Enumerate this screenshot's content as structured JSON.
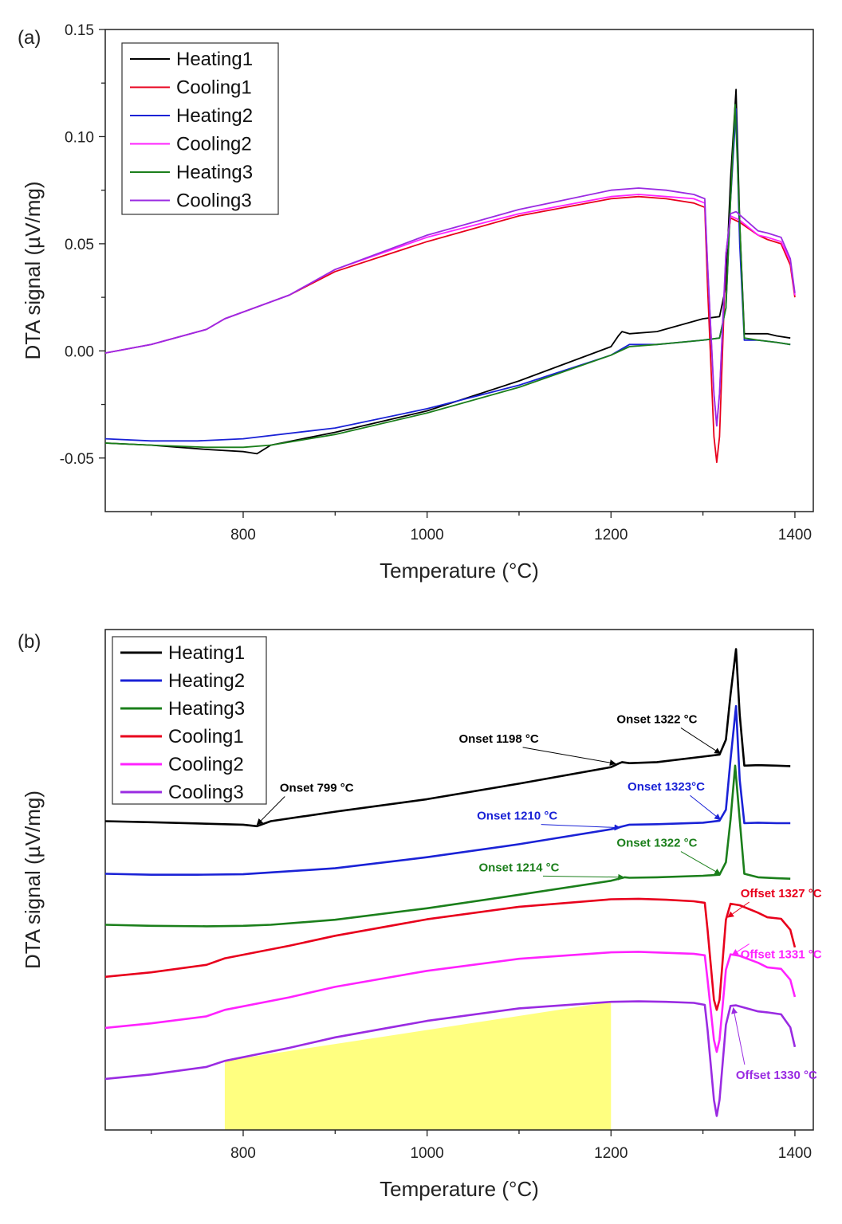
{
  "chart_data": [
    {
      "type": "line",
      "panel_label": "(a)",
      "xlabel": "Temperature (°C)",
      "ylabel": "DTA signal (µV/mg)",
      "xlim": [
        650,
        1420
      ],
      "ylim": [
        -0.075,
        0.15
      ],
      "xticks": [
        800,
        1000,
        1200,
        1400
      ],
      "xtick_labels": [
        "800",
        "1000",
        "1200",
        "1400"
      ],
      "yticks": [
        -0.05,
        0.0,
        0.05,
        0.1,
        0.15
      ],
      "ytick_labels": [
        "-0.05",
        "0.00",
        "0.05",
        "0.10",
        "0.15"
      ],
      "legend_position": "top-left",
      "series": [
        {
          "name": "Heating1",
          "color": "#000000",
          "x": [
            650,
            700,
            760,
            800,
            815,
            830,
            900,
            1000,
            1100,
            1200,
            1208,
            1212,
            1220,
            1250,
            1300,
            1318,
            1325,
            1330,
            1336,
            1340,
            1345,
            1360,
            1370,
            1380,
            1395
          ],
          "y": [
            -0.043,
            -0.044,
            -0.046,
            -0.047,
            -0.048,
            -0.044,
            -0.038,
            -0.028,
            -0.014,
            0.002,
            0.007,
            0.009,
            0.008,
            0.009,
            0.015,
            0.016,
            0.03,
            0.08,
            0.122,
            0.06,
            0.008,
            0.008,
            0.008,
            0.007,
            0.006
          ]
        },
        {
          "name": "Cooling1",
          "color": "#e8001c",
          "x": [
            650,
            700,
            760,
            780,
            850,
            900,
            1000,
            1100,
            1200,
            1230,
            1260,
            1290,
            1302,
            1305,
            1312,
            1315,
            1318,
            1325,
            1330,
            1340,
            1360,
            1370,
            1385,
            1395,
            1400
          ],
          "y": [
            -0.001,
            0.003,
            0.01,
            0.015,
            0.026,
            0.037,
            0.051,
            0.063,
            0.071,
            0.072,
            0.071,
            0.069,
            0.067,
            0.03,
            -0.04,
            -0.052,
            -0.04,
            0.045,
            0.062,
            0.06,
            0.054,
            0.052,
            0.05,
            0.04,
            0.025
          ]
        },
        {
          "name": "Heating2",
          "color": "#1a22d6",
          "x": [
            650,
            700,
            750,
            800,
            900,
            1000,
            1100,
            1200,
            1220,
            1250,
            1300,
            1318,
            1325,
            1330,
            1336,
            1340,
            1345,
            1360,
            1380,
            1395
          ],
          "y": [
            -0.041,
            -0.042,
            -0.042,
            -0.041,
            -0.036,
            -0.027,
            -0.016,
            -0.002,
            0.003,
            0.003,
            0.005,
            0.006,
            0.02,
            0.07,
            0.113,
            0.05,
            0.005,
            0.005,
            0.004,
            0.003
          ]
        },
        {
          "name": "Cooling2",
          "color": "#ff22ff",
          "x": [
            650,
            700,
            760,
            780,
            850,
            900,
            1000,
            1100,
            1200,
            1230,
            1260,
            1290,
            1302,
            1305,
            1312,
            1315,
            1318,
            1325,
            1330,
            1340,
            1360,
            1370,
            1385,
            1395,
            1400
          ],
          "y": [
            -0.001,
            0.003,
            0.01,
            0.015,
            0.026,
            0.038,
            0.053,
            0.064,
            0.072,
            0.073,
            0.072,
            0.071,
            0.069,
            0.04,
            -0.02,
            -0.035,
            -0.02,
            0.045,
            0.063,
            0.061,
            0.054,
            0.053,
            0.051,
            0.042,
            0.026
          ]
        },
        {
          "name": "Heating3",
          "color": "#1b7f1b",
          "x": [
            650,
            700,
            760,
            800,
            830,
            900,
            1000,
            1100,
            1200,
            1220,
            1250,
            1300,
            1318,
            1325,
            1330,
            1335,
            1340,
            1345,
            1360,
            1380,
            1395
          ],
          "y": [
            -0.043,
            -0.044,
            -0.045,
            -0.045,
            -0.044,
            -0.039,
            -0.029,
            -0.017,
            -0.002,
            0.002,
            0.003,
            0.005,
            0.006,
            0.02,
            0.07,
            0.115,
            0.06,
            0.006,
            0.005,
            0.004,
            0.003
          ]
        },
        {
          "name": "Cooling3",
          "color": "#9a2be2",
          "x": [
            650,
            700,
            760,
            780,
            850,
            900,
            1000,
            1100,
            1200,
            1230,
            1260,
            1290,
            1302,
            1305,
            1312,
            1315,
            1318,
            1325,
            1330,
            1336,
            1360,
            1370,
            1385,
            1395,
            1400
          ],
          "y": [
            -0.001,
            0.003,
            0.01,
            0.015,
            0.026,
            0.038,
            0.054,
            0.066,
            0.075,
            0.076,
            0.075,
            0.073,
            0.071,
            0.04,
            -0.02,
            -0.035,
            -0.02,
            0.045,
            0.064,
            0.065,
            0.056,
            0.055,
            0.053,
            0.043,
            0.027
          ]
        }
      ]
    },
    {
      "type": "line",
      "panel_label": "(b)",
      "xlabel": "Temperature (°C)",
      "ylabel": "DTA signal (µV/mg)",
      "xlim": [
        650,
        1420
      ],
      "ylim": [
        0,
        100
      ],
      "xticks": [
        800,
        1000,
        1200,
        1400
      ],
      "xtick_labels": [
        "800",
        "1000",
        "1200",
        "1400"
      ],
      "yticks": [],
      "legend_position": "top-left",
      "highlight": {
        "x_start": 780,
        "x_end": 1200,
        "color": "#ffff80"
      },
      "series": [
        {
          "name": "Heating1",
          "color": "#000000",
          "x": [
            650,
            700,
            760,
            800,
            815,
            830,
            900,
            1000,
            1100,
            1200,
            1208,
            1212,
            1220,
            1250,
            1300,
            1318,
            1325,
            1330,
            1336,
            1340,
            1345,
            1360,
            1380,
            1395
          ],
          "y": [
            61.7,
            61.5,
            61.2,
            61.0,
            60.7,
            61.7,
            63.6,
            66.1,
            69.2,
            72.5,
            73.2,
            73.5,
            73.3,
            73.5,
            74.6,
            75.0,
            78.0,
            87.0,
            96.1,
            83.0,
            72.8,
            72.9,
            72.8,
            72.7
          ]
        },
        {
          "name": "Heating2",
          "color": "#1a22d6",
          "x": [
            650,
            700,
            750,
            800,
            900,
            1000,
            1100,
            1200,
            1220,
            1250,
            1300,
            1318,
            1325,
            1330,
            1336,
            1340,
            1345,
            1360,
            1380,
            1395
          ],
          "y": [
            51.2,
            51.0,
            51.0,
            51.1,
            52.3,
            54.5,
            57.1,
            60.1,
            61.0,
            61.1,
            61.4,
            61.8,
            64.0,
            74.0,
            84.7,
            70.0,
            61.3,
            61.4,
            61.3,
            61.3
          ]
        },
        {
          "name": "Heating3",
          "color": "#1b7f1b",
          "x": [
            650,
            700,
            760,
            800,
            830,
            900,
            1000,
            1100,
            1200,
            1215,
            1220,
            1250,
            1300,
            1318,
            1325,
            1330,
            1335,
            1340,
            1345,
            1360,
            1380,
            1395
          ],
          "y": [
            41.0,
            40.8,
            40.7,
            40.8,
            41.0,
            42.0,
            44.3,
            47.0,
            49.8,
            50.5,
            50.4,
            50.5,
            50.8,
            51.0,
            53.5,
            62.0,
            72.8,
            62.0,
            51.2,
            50.5,
            50.3,
            50.2
          ]
        },
        {
          "name": "Cooling1",
          "color": "#e8001c",
          "x": [
            650,
            700,
            760,
            780,
            850,
            900,
            1000,
            1100,
            1200,
            1230,
            1260,
            1290,
            1302,
            1305,
            1312,
            1315,
            1318,
            1325,
            1330,
            1340,
            1360,
            1370,
            1385,
            1395,
            1400
          ],
          "y": [
            30.6,
            31.5,
            33.0,
            34.3,
            36.8,
            38.8,
            42.1,
            44.6,
            46.1,
            46.2,
            46.0,
            45.7,
            45.4,
            40.0,
            26.0,
            24.0,
            26.0,
            42.0,
            45.2,
            44.9,
            43.4,
            42.5,
            42.2,
            40.0,
            36.5
          ]
        },
        {
          "name": "Cooling2",
          "color": "#ff22ff",
          "x": [
            650,
            700,
            760,
            780,
            850,
            900,
            1000,
            1100,
            1200,
            1230,
            1260,
            1290,
            1302,
            1305,
            1312,
            1315,
            1318,
            1325,
            1330,
            1340,
            1360,
            1370,
            1385,
            1395,
            1400
          ],
          "y": [
            20.4,
            21.3,
            22.7,
            24.0,
            26.5,
            28.6,
            31.8,
            34.2,
            35.5,
            35.6,
            35.4,
            35.2,
            34.9,
            30.0,
            18.0,
            15.6,
            18.0,
            32.0,
            35.1,
            34.8,
            33.4,
            32.5,
            32.2,
            30.0,
            26.6
          ]
        },
        {
          "name": "Cooling3",
          "color": "#9a2be2",
          "x": [
            650,
            700,
            760,
            780,
            850,
            900,
            1000,
            1100,
            1200,
            1230,
            1260,
            1290,
            1302,
            1305,
            1312,
            1315,
            1318,
            1325,
            1330,
            1336,
            1360,
            1370,
            1385,
            1395,
            1400
          ],
          "y": [
            10.2,
            11.1,
            12.6,
            13.8,
            16.4,
            18.5,
            21.8,
            24.3,
            25.6,
            25.7,
            25.6,
            25.4,
            25.0,
            20.0,
            6.0,
            2.8,
            6.0,
            21.0,
            24.8,
            24.9,
            23.7,
            23.5,
            23.1,
            20.5,
            16.6
          ]
        }
      ],
      "annotations": [
        {
          "text": "Onset 799 °C",
          "color": "#000000",
          "x": 880,
          "y": 67.6,
          "arrow_to": [
            815,
            61.0
          ]
        },
        {
          "text": "Onset 1198 °C",
          "color": "#000000",
          "x": 1078,
          "y": 77.4,
          "arrow_to": [
            1205,
            73.2
          ]
        },
        {
          "text": "Onset 1322 °C",
          "color": "#000000",
          "x": 1250,
          "y": 81.3,
          "arrow_to": [
            1319,
            75.2
          ]
        },
        {
          "text": "Onset 1323°C",
          "color": "#1a22d6",
          "x": 1260,
          "y": 67.8,
          "arrow_to": [
            1319,
            62.0
          ]
        },
        {
          "text": "Onset 1210 °C",
          "color": "#1a22d6",
          "x": 1098,
          "y": 62.0,
          "arrow_to": [
            1210,
            60.4
          ]
        },
        {
          "text": "Onset 1322 °C",
          "color": "#1b7f1b",
          "x": 1250,
          "y": 56.6,
          "arrow_to": [
            1319,
            51.1
          ]
        },
        {
          "text": "Onset 1214 °C",
          "color": "#1b7f1b",
          "x": 1100,
          "y": 51.7,
          "arrow_to": [
            1214,
            50.5
          ]
        },
        {
          "text": "Offset 1327 °C",
          "color": "#e8001c",
          "x": 1385,
          "y": 46.5,
          "arrow_to": [
            1327,
            42.5
          ]
        },
        {
          "text": "Offset 1331 °C",
          "color": "#ff22ff",
          "x": 1385,
          "y": 34.3,
          "arrow_to": [
            1332,
            35.0
          ]
        },
        {
          "text": "Offset 1330 °C",
          "color": "#9a2be2",
          "x": 1380,
          "y": 10.2,
          "arrow_to": [
            1333,
            24.4
          ]
        }
      ]
    }
  ]
}
